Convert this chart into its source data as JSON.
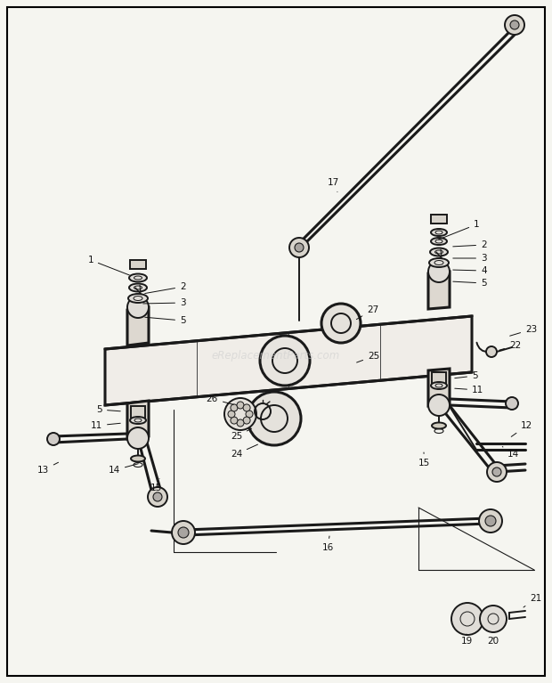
{
  "background_color": "#f5f5f0",
  "border_color": "#000000",
  "watermark": "eReplacementParts.com",
  "fig_width": 6.2,
  "fig_height": 7.67,
  "dpi": 100
}
